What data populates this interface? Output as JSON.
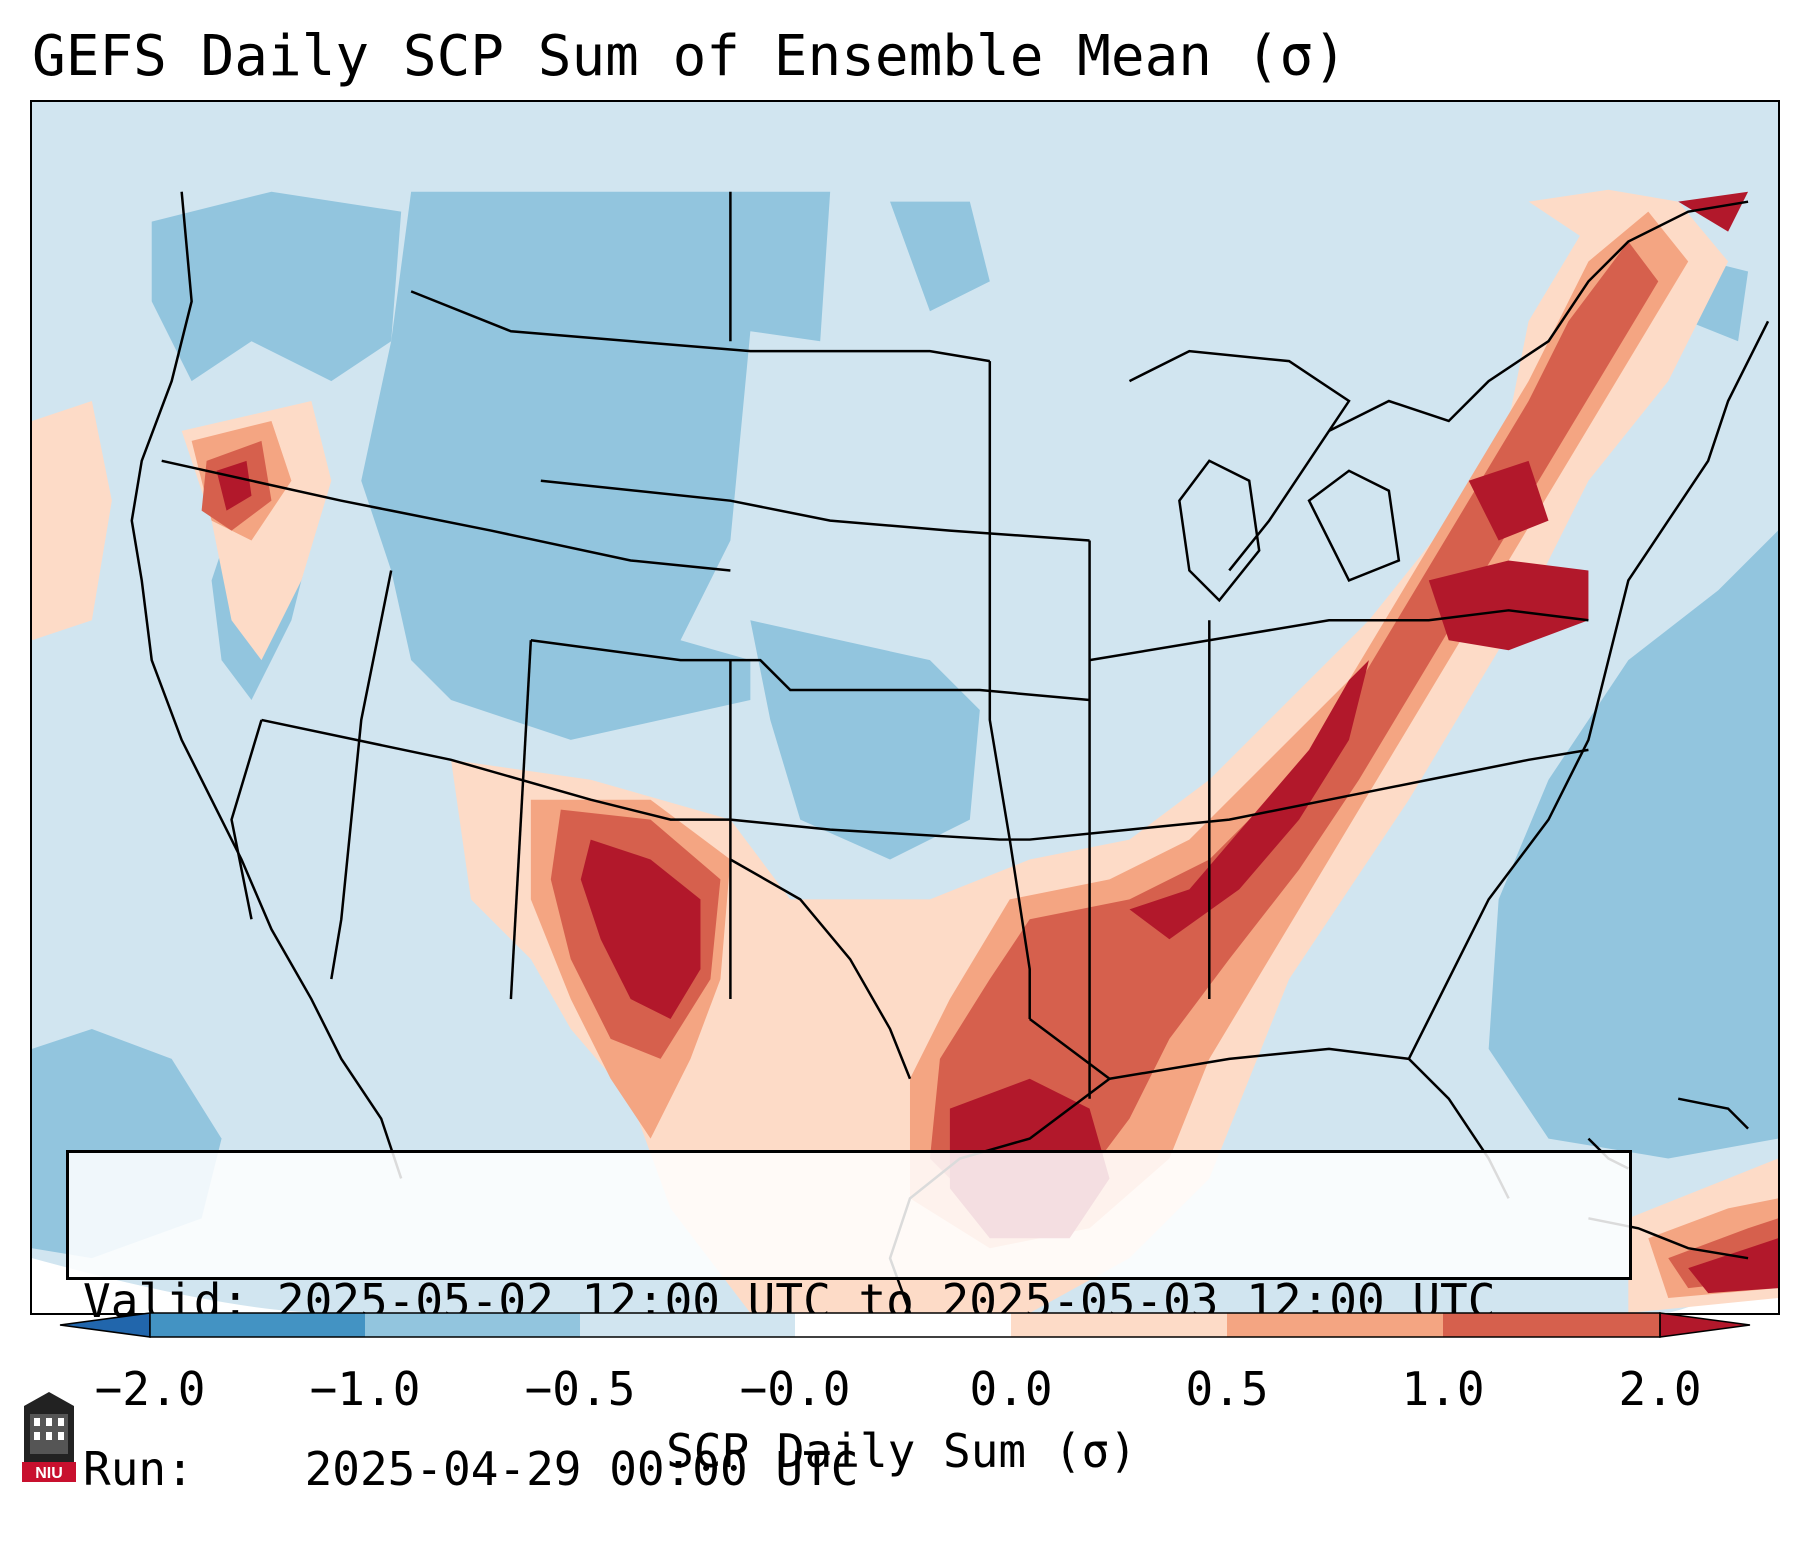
{
  "title": "GEFS Daily SCP Sum of Ensemble Mean (σ)",
  "info": {
    "valid_label": "Valid:",
    "valid_value": "2025-05-02 12:00 UTC to 2025-05-03 12:00 UTC",
    "run_label": "Run:",
    "run_value": "2025-04-29 00:00 UTC"
  },
  "colorbar": {
    "label": "SCP Daily Sum (σ)",
    "ticks": [
      "−2.0",
      "−1.0",
      "−0.5",
      "−0.0",
      "0.0",
      "0.5",
      "1.0",
      "2.0"
    ],
    "colors": [
      "#2166ac",
      "#4393c3",
      "#92c5de",
      "#d1e5f0",
      "#ffffff",
      "#fddbc7",
      "#f4a582",
      "#d6604d",
      "#b2182b"
    ]
  },
  "logo": {
    "text": "NIU",
    "icon": "university-tower-icon"
  }
}
